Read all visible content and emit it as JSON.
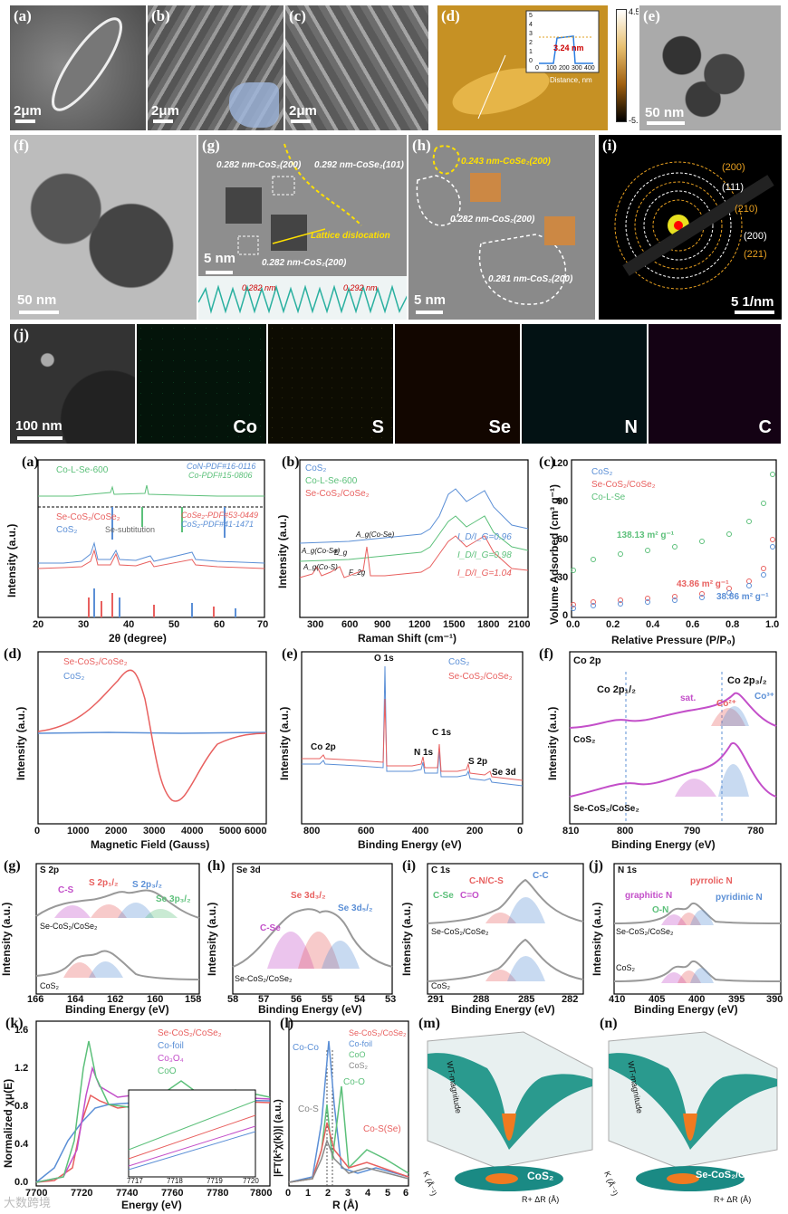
{
  "micro": {
    "a": {
      "label": "(a)",
      "scale": "2μm"
    },
    "b": {
      "label": "(b)",
      "scale": "2μm"
    },
    "c": {
      "label": "(c)",
      "scale": "2μm"
    },
    "d": {
      "label": "(d)",
      "inset_ylabel": "Height, nm",
      "inset_xlabel": "Distance, nm",
      "inset_value": "3.24 nm",
      "inset_xticks": [
        "0",
        "100",
        "200",
        "300",
        "400"
      ],
      "inset_yticks": [
        "0",
        "1",
        "2",
        "3",
        "4",
        "5"
      ],
      "color_max": "4.5 nm",
      "color_min": "-5.5 nm"
    },
    "e": {
      "label": "(e)",
      "scale": "50 nm"
    },
    "f": {
      "label": "(f)",
      "scale": "50 nm"
    },
    "g": {
      "label": "(g)",
      "scale": "5 nm",
      "ann1": "0.282 nm-CoS₂(200)",
      "ann2": "0.292 nm-CoSe₂(101)",
      "ann3": "Lattice dislocation",
      "ann4": "0.282 nm-CoS₂(200)",
      "profile1": "0.282 nm",
      "profile2": "0.292 nm"
    },
    "h": {
      "label": "(h)",
      "scale": "5 nm",
      "ann1": "0.243 nm-CoSe₂(200)",
      "ann2": "0.282 nm-CoS₂(200)",
      "ann3": "0.281 nm-CoS₂(200)"
    },
    "i": {
      "label": "(i)",
      "scale": "5 1/nm",
      "rings": [
        "(200)",
        "(111)",
        "(210)",
        "(200)",
        "(221)"
      ]
    },
    "j": {
      "label": "(j)",
      "scale": "100 nm",
      "elements": [
        "Co",
        "S",
        "Se",
        "N",
        "C"
      ]
    }
  },
  "colors": {
    "blue": "#5b8fd6",
    "green": "#5cc07a",
    "red": "#e8605f",
    "purple": "#c34fc9",
    "gold": "#e8a020"
  },
  "plots": {
    "a": {
      "label": "(a)",
      "ylabel": "Intensity (a.u.)",
      "xlabel": "2θ (degree)",
      "xticks": [
        "20",
        "30",
        "40",
        "50",
        "60",
        "70"
      ],
      "leg1": "Co-L-Se-600",
      "pdf1": "CoN-PDF#16-0116",
      "pdf2": "Co-PDF#15-0806",
      "leg2": "Se-CoS₂/CoSe₂",
      "leg3": "CoS₂",
      "pdf3": "CoSe₂-PDF#53-0449",
      "pdf4": "CoS₂-PDF#41-1471",
      "note": "Se-subtitution"
    },
    "b": {
      "label": "(b)",
      "ylabel": "Intensity (a.u.)",
      "xlabel": "Raman Shift (cm⁻¹)",
      "xticks": [
        "300",
        "600",
        "900",
        "1200",
        "1500",
        "1800",
        "2100"
      ],
      "legend": [
        "CoS₂",
        "Co-L-Se-600",
        "Se-CoS₂/CoSe₂"
      ],
      "ratios": [
        "I_D/I_G=0.96",
        "I_D/I_G=0.98",
        "I_D/I_G=1.04"
      ],
      "peaks": [
        "A_g(Co-Se)",
        "A_g(Co-Se)",
        "A_g(Co-S)",
        "E_g",
        "F_2g"
      ]
    },
    "c": {
      "label": "(c)",
      "ylabel": "Volume Adsorbed (cm³ g⁻¹)",
      "xlabel": "Relative Pressure (P/P₀)",
      "xticks": [
        "0.0",
        "0.2",
        "0.4",
        "0.6",
        "0.8",
        "1.0"
      ],
      "yticks": [
        "0",
        "30",
        "60",
        "90",
        "120"
      ],
      "legend": [
        "CoS₂",
        "Se-CoS₂/CoSe₂",
        "Co-L-Se"
      ],
      "areas": [
        "138.13 m² g⁻¹",
        "43.86 m² g⁻¹",
        "38.86 m² g⁻¹"
      ]
    },
    "d": {
      "label": "(d)",
      "ylabel": "Intensity (a.u.)",
      "xlabel": "Magnetic Field (Gauss)",
      "xticks": [
        "0",
        "1000",
        "2000",
        "3000",
        "4000",
        "5000",
        "6000"
      ],
      "legend": [
        "Se-CoS₂/CoSe₂",
        "CoS₂"
      ]
    },
    "e": {
      "label": "(e)",
      "ylabel": "Intensity (a.u.)",
      "xlabel": "Binding Energy (eV)",
      "xticks": [
        "800",
        "600",
        "400",
        "200",
        "0"
      ],
      "legend": [
        "CoS₂",
        "Se-CoS₂/CoSe₂"
      ],
      "peaks": [
        "O 1s",
        "Co 2p",
        "N 1s",
        "C 1s",
        "S 2p",
        "Se 3d"
      ]
    },
    "f": {
      "label": "(f)",
      "ylabel": "Intensity (a.u.)",
      "xlabel": "Binding Energy (eV)",
      "xticks": [
        "810",
        "800",
        "790",
        "780"
      ],
      "title": "Co 2p",
      "ann": [
        "Co 2p₁/₂",
        "Co 2p₃/₂",
        "sat.",
        "Co²⁺",
        "Co³⁺",
        "CoS₂",
        "Se-CoS₂/CoSe₂"
      ]
    },
    "g": {
      "label": "(g)",
      "ylabel": "Intensity (a.u.)",
      "xlabel": "Binding Energy (eV)",
      "xticks": [
        "166",
        "164",
        "162",
        "160",
        "158"
      ],
      "title": "S 2p",
      "ann": [
        "C-S",
        "S 2p₁/₂",
        "S 2p₃/₂",
        "Se 3p₃/₂",
        "Se-CoS₂/CoSe₂",
        "CoS₂"
      ]
    },
    "h": {
      "label": "(h)",
      "ylabel": "Intensity (a.u.)",
      "xlabel": "Binding Energy (eV)",
      "xticks": [
        "58",
        "57",
        "56",
        "55",
        "54",
        "53"
      ],
      "title": "Se 3d",
      "ann": [
        "Se 3d₃/₂",
        "Se 3d₅/₂",
        "C-Se",
        "Se-CoS₂/CoSe₂"
      ]
    },
    "i": {
      "label": "(i)",
      "ylabel": "Intensity (a.u.)",
      "xlabel": "Binding Energy (eV)",
      "xticks": [
        "291",
        "288",
        "285",
        "282"
      ],
      "title": "C 1s",
      "ann": [
        "C-N/C-S",
        "C-C",
        "C-Se",
        "C=O",
        "Se-CoS₂/CoSe₂",
        "CoS₂"
      ]
    },
    "j": {
      "label": "(j)",
      "ylabel": "Intensity (a.u.)",
      "xlabel": "Binding Energy (eV)",
      "xticks": [
        "410",
        "405",
        "400",
        "395",
        "390"
      ],
      "title": "N 1s",
      "ann": [
        "pyrrolic N",
        "graphitic N",
        "pyridinic N",
        "O-N",
        "Se-CoS₂/CoSe₂",
        "CoS₂"
      ]
    },
    "k": {
      "label": "(k)",
      "ylabel": "Normalized χμ(E)",
      "xlabel": "Energy (eV)",
      "xticks": [
        "7700",
        "7720",
        "7740",
        "7760",
        "7780",
        "7800"
      ],
      "yticks": [
        "0.0",
        "0.4",
        "0.8",
        "1.2",
        "1.6"
      ],
      "legend": [
        "Se-CoS₂/CoSe₂",
        "Co-foil",
        "Co₃O₄",
        "CoO"
      ],
      "inset_xticks": [
        "7717",
        "7718",
        "7719",
        "7720"
      ]
    },
    "l": {
      "label": "(l)",
      "ylabel": "|FT(k²χ(k))| (a.u.)",
      "xlabel": "R (Å)",
      "xticks": [
        "0",
        "1",
        "2",
        "3",
        "4",
        "5",
        "6"
      ],
      "legend": [
        "Se-CoS₂/CoSe₂",
        "Co-foil",
        "CoO",
        "CoS₂"
      ],
      "ann": [
        "Co-Co",
        "Co-S",
        "Co-O",
        "Co-S(Se)"
      ]
    },
    "m": {
      "label": "(m)",
      "sample": "CoS₂",
      "zlabel": "WT-magnitude",
      "klabel": "K (Å⁻¹)",
      "rlabel": "R+ ΔR (Å)"
    },
    "n": {
      "label": "(n)",
      "sample": "Se-CoS₂/CoSe₂",
      "zlabel": "WT-magnitude",
      "klabel": "K (Å⁻¹)",
      "rlabel": "R+ ΔR (Å)"
    }
  },
  "watermark": "大数跨境"
}
